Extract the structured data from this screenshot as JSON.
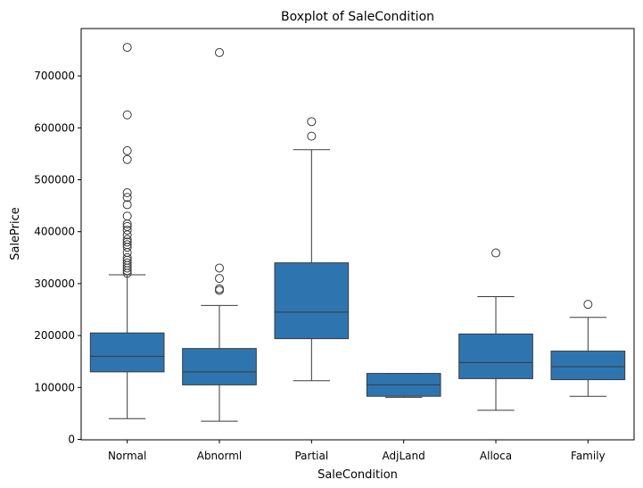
{
  "chart_data": {
    "type": "box",
    "title": "Boxplot of SaleCondition",
    "xlabel": "SaleCondition",
    "ylabel": "SalePrice",
    "ylim": [
      0,
      780000
    ],
    "yticks": [
      0,
      100000,
      200000,
      300000,
      400000,
      500000,
      600000,
      700000
    ],
    "ytick_labels": [
      "0",
      "100000",
      "200000",
      "300000",
      "400000",
      "500000",
      "600000",
      "700000"
    ],
    "grid": false,
    "color": "#2e75b0",
    "line_color": "#3a3a3a",
    "categories": [
      "Normal",
      "Abnorml",
      "Partial",
      "AdjLand",
      "Alloca",
      "Family"
    ],
    "boxes": [
      {
        "category": "Normal",
        "whisker_low": 40000,
        "q1": 130000,
        "median": 160000,
        "q3": 205000,
        "whisker_high": 317000,
        "outliers": [
          755000,
          625000,
          556000,
          539000,
          475000,
          466000,
          452000,
          430000,
          415000,
          410000,
          403000,
          394000,
          385000,
          380000,
          375000,
          370000,
          360000,
          350000,
          345000,
          340000,
          335000,
          330000,
          325000,
          320000
        ]
      },
      {
        "category": "Abnorml",
        "whisker_low": 35000,
        "q1": 105000,
        "median": 130000,
        "q3": 175000,
        "whisker_high": 258000,
        "outliers": [
          745000,
          330000,
          310000,
          290000,
          287000
        ]
      },
      {
        "category": "Partial",
        "whisker_low": 113000,
        "q1": 194000,
        "median": 245000,
        "q3": 340000,
        "whisker_high": 558000,
        "outliers": [
          612000,
          584000
        ]
      },
      {
        "category": "AdjLand",
        "whisker_low": 81000,
        "q1": 83000,
        "median": 105000,
        "q3": 127000,
        "whisker_high": 127000,
        "outliers": []
      },
      {
        "category": "Alloca",
        "whisker_low": 56000,
        "q1": 117000,
        "median": 148000,
        "q3": 203000,
        "whisker_high": 275000,
        "outliers": [
          359000
        ]
      },
      {
        "category": "Family",
        "whisker_low": 83000,
        "q1": 115000,
        "median": 140000,
        "q3": 170000,
        "whisker_high": 235000,
        "outliers": [
          260000
        ]
      }
    ]
  }
}
